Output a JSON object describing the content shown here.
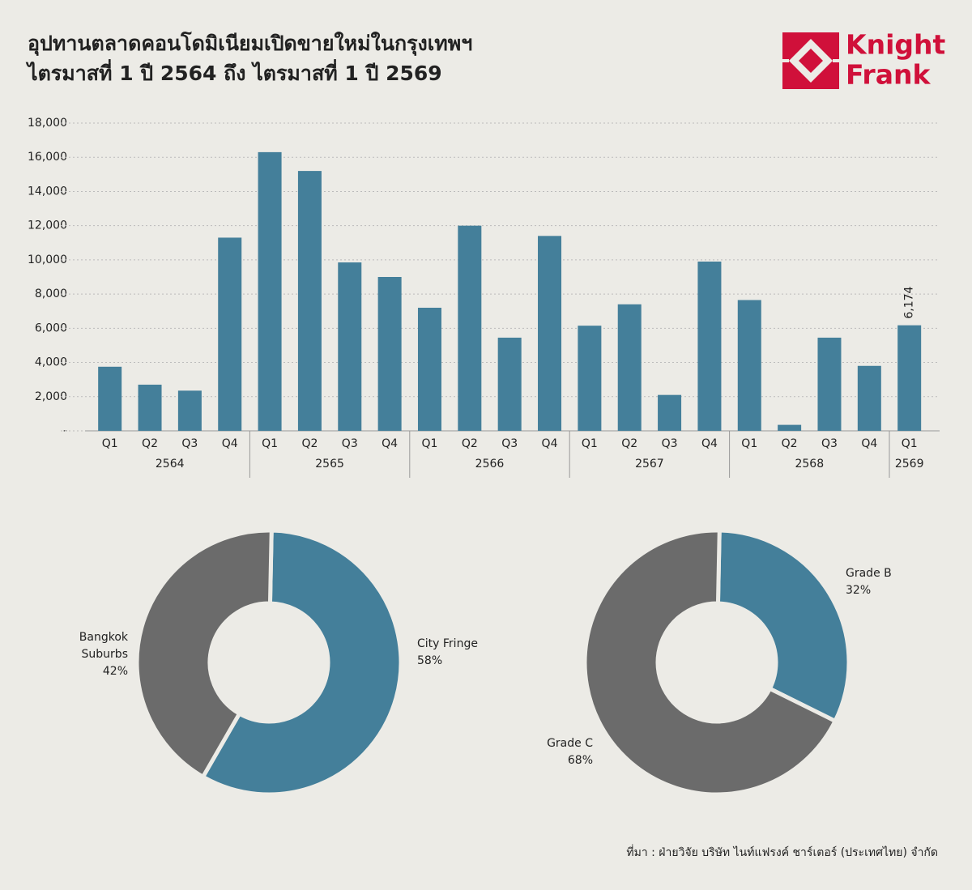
{
  "header": {
    "title": [
      "อุปทานตลาดคอนโดมิเนียมเปิดขายใหม่ในกรุงเทพฯ",
      "ไตรมาสที่ 1 ปี 2564 ถึง ไตรมาสที่ 1 ปี 2569"
    ],
    "logo": [
      "Knight",
      "Frank"
    ]
  },
  "chart_data": [
    {
      "type": "bar",
      "color": "#447f9a",
      "grid": true,
      "groups": [
        {
          "label": "2564",
          "quarters": [
            "Q1",
            "Q2",
            "Q3",
            "Q4"
          ]
        },
        {
          "label": "2565",
          "quarters": [
            "Q1",
            "Q2",
            "Q3",
            "Q4"
          ]
        },
        {
          "label": "2566",
          "quarters": [
            "Q1",
            "Q2",
            "Q3",
            "Q4"
          ]
        },
        {
          "label": "2567",
          "quarters": [
            "Q1",
            "Q2",
            "Q3",
            "Q4"
          ]
        },
        {
          "label": "2568",
          "quarters": [
            "Q1",
            "Q2",
            "Q3",
            "Q4"
          ]
        },
        {
          "label": "2569",
          "quarters": [
            "Q1"
          ]
        }
      ],
      "values": [
        3750,
        2700,
        2350,
        11300,
        16300,
        15200,
        9850,
        9000,
        7200,
        12000,
        5450,
        11400,
        6150,
        7400,
        2100,
        9900,
        7650,
        350,
        5450,
        3800,
        6174
      ],
      "value_labels": [
        null,
        null,
        null,
        null,
        null,
        null,
        null,
        null,
        null,
        null,
        null,
        null,
        null,
        null,
        null,
        null,
        null,
        null,
        null,
        null,
        "6,174"
      ],
      "ylim": [
        0,
        18000
      ],
      "yticks": [
        {
          "value": 0,
          "label": "-"
        },
        {
          "value": 2000,
          "label": "2,000"
        },
        {
          "value": 4000,
          "label": "4,000"
        },
        {
          "value": 6000,
          "label": "6,000"
        },
        {
          "value": 8000,
          "label": "8,000"
        },
        {
          "value": 10000,
          "label": "10,000"
        },
        {
          "value": 12000,
          "label": "12,000"
        },
        {
          "value": 14000,
          "label": "14,000"
        },
        {
          "value": 16000,
          "label": "16,000"
        },
        {
          "value": 18000,
          "label": "18,000"
        }
      ]
    },
    {
      "type": "pie",
      "categories": [
        "City Fringe",
        "Bangkok Suburbs"
      ],
      "values": [
        58,
        42
      ],
      "value_labels": [
        "58%",
        "42%"
      ],
      "colors": [
        "#447f9a",
        "#6b6b6b"
      ],
      "hole": true
    },
    {
      "type": "pie",
      "categories": [
        "Grade B",
        "Grade C"
      ],
      "values": [
        32,
        68
      ],
      "value_labels": [
        "32%",
        "68%"
      ],
      "colors": [
        "#447f9a",
        "#6b6b6b"
      ],
      "hole": true
    }
  ],
  "source": "ที่มา : ฝ่ายวิจัย บริษัท ไนท์แฟรงค์ ชาร์เตอร์ (ประเทศไทย) จำกัด"
}
